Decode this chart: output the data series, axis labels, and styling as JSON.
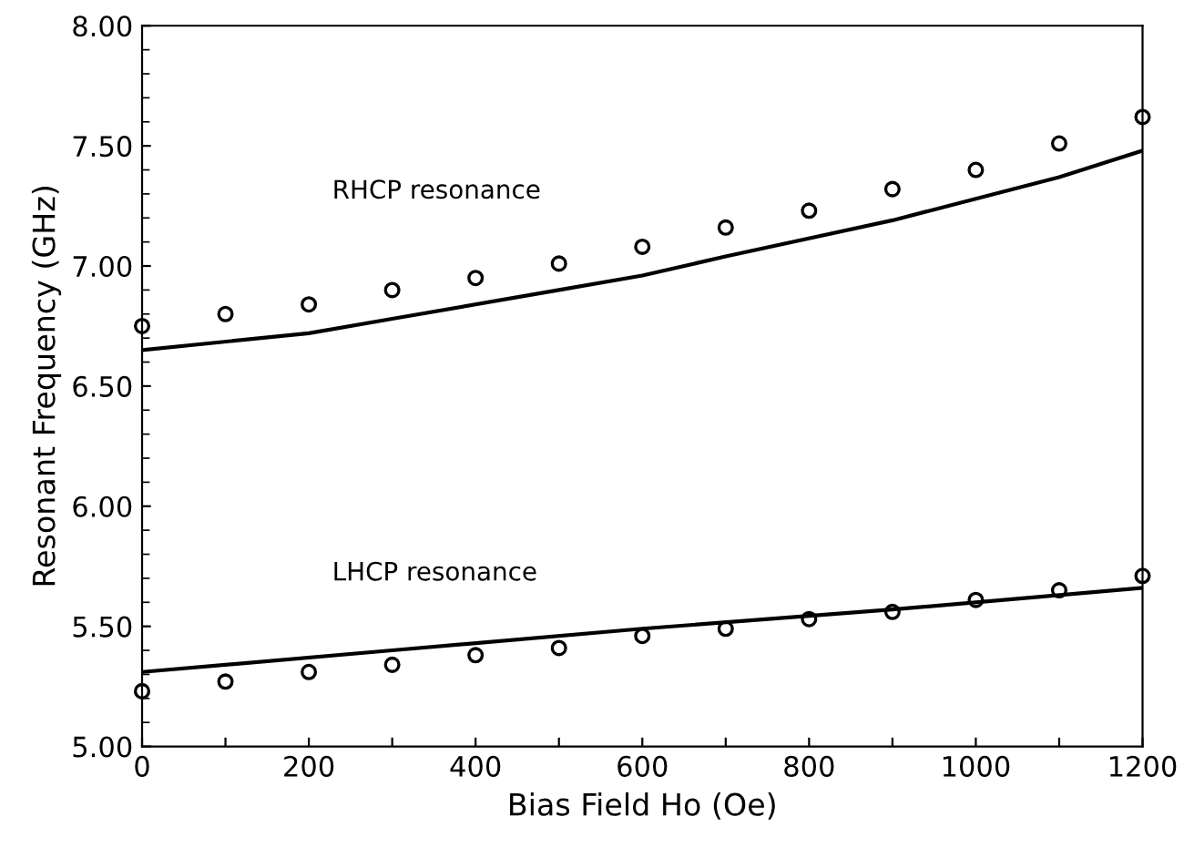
{
  "chart_data": {
    "type": "scatter",
    "xlabel": "Bias Field Ho (Oe)",
    "ylabel": "Resonant Frequency (GHz)",
    "xlim": [
      0,
      1200
    ],
    "ylim": [
      5,
      8
    ],
    "xticks": [
      0,
      {
        "value": 100,
        "label": null
      },
      200,
      {
        "value": 300,
        "label": null
      },
      400,
      {
        "value": 500,
        "label": null
      },
      600,
      {
        "value": 700,
        "label": null
      },
      800,
      {
        "value": 900,
        "label": null
      },
      1000,
      {
        "value": 1100,
        "label": null
      },
      1200
    ],
    "yticks": [
      {
        "value": 5,
        "label": "5.00"
      },
      {
        "value": 5.5,
        "label": "5.50"
      },
      {
        "value": 6,
        "label": "6.00"
      },
      {
        "value": 6.5,
        "label": "6.50"
      },
      {
        "value": 7,
        "label": "7.00"
      },
      {
        "value": 7.5,
        "label": "7.50"
      },
      {
        "value": 8,
        "label": "8.00"
      }
    ],
    "grid": false,
    "legend": false,
    "annotations": [
      "RHCP resonance",
      "LHCP resonance"
    ],
    "series": [
      {
        "marker": "circle",
        "color": "#000000",
        "x": [
          0,
          100,
          200,
          300,
          400,
          500,
          600,
          700,
          800,
          900,
          1000,
          1100,
          1200
        ],
        "values": [
          6.75,
          6.8,
          6.84,
          6.9,
          6.95,
          7.01,
          7.08,
          7.16,
          7.23,
          7.32,
          7.4,
          7.51,
          7.62
        ]
      },
      {
        "type": "line",
        "marker": "none",
        "line_style": "solid",
        "color": "#000000",
        "x": [
          0,
          200,
          300,
          500,
          600,
          700,
          900,
          1000,
          1100,
          1200
        ],
        "values": [
          6.65,
          6.72,
          6.78,
          6.9,
          6.96,
          7.04,
          7.19,
          7.28,
          7.37,
          7.48
        ]
      },
      {
        "marker": "circle",
        "color": "#000000",
        "x": [
          0,
          100,
          200,
          300,
          400,
          500,
          600,
          700,
          800,
          900,
          1000,
          1100,
          1200
        ],
        "values": [
          5.23,
          5.27,
          5.31,
          5.34,
          5.38,
          5.41,
          5.46,
          5.49,
          5.53,
          5.56,
          5.61,
          5.65,
          5.71
        ]
      },
      {
        "type": "line",
        "marker": "none",
        "line_style": "solid",
        "color": "#000000",
        "x": [
          0,
          300,
          600,
          900,
          1200
        ],
        "values": [
          5.31,
          5.4,
          5.49,
          5.57,
          5.66
        ]
      }
    ]
  }
}
